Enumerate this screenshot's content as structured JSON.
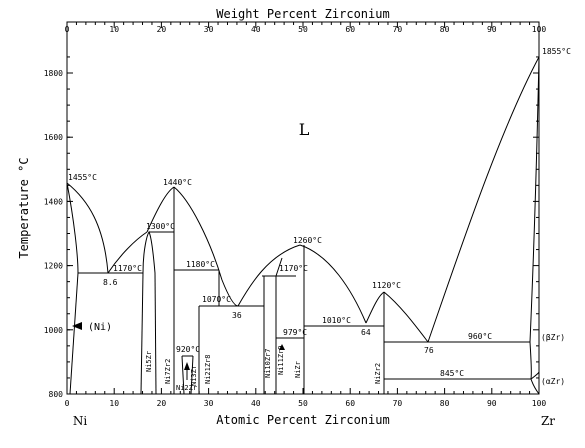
{
  "top_axis": {
    "title": "Weight Percent Zirconium",
    "ticks": [
      "0",
      "10",
      "20",
      "30",
      "40",
      "50",
      "60",
      "70",
      "80",
      "90",
      "100"
    ]
  },
  "bottom_axis": {
    "title": "Atomic Percent Zirconium",
    "ticks": [
      "0",
      "10",
      "20",
      "30",
      "40",
      "50",
      "60",
      "70",
      "80",
      "90",
      "100"
    ]
  },
  "left_axis": {
    "title": "Temperature °C",
    "ticks": [
      "800",
      "1000",
      "1200",
      "1400",
      "1600",
      "1800"
    ]
  },
  "elements": {
    "left": "Ni",
    "right": "Zr"
  },
  "regions": {
    "liquid": "L",
    "ni_solid": "(Ni)"
  },
  "point_labels": {
    "ni_melting": "1455°C",
    "zr_melting": "1855°C",
    "max_ni7zr2": "1440°C",
    "t_1300": "1300°C",
    "t_1260": "1260°C",
    "t_1180": "1180°C",
    "t_1170_left": "1170°C",
    "t_1170_mid": "1170°C",
    "t_1120": "1120°C",
    "t_1070": "1070°C",
    "t_1010": "1010°C",
    "t_979": "979°C",
    "t_960": "960°C",
    "t_920": "920°C",
    "t_845": "845°C",
    "e_8_6": "8.6",
    "e_36": "36",
    "e_64": "64",
    "e_76": "76"
  },
  "phases": {
    "ni5zr": "Ni5Zr",
    "ni7zr2": "Ni7Zr2",
    "ni3zr": "Ni3Zr",
    "ni21zr8": "Ni21Zr8",
    "ni10zr7": "Ni10Zr7",
    "ni11zr9": "Ni11Zr9",
    "nizr": "NiZr",
    "nizr2": "NiZr2",
    "ni2zr_bottom": "Ni2Zr"
  },
  "right_labels": {
    "beta_zr": "(βZr)",
    "alpha_zr": "(αZr)"
  }
}
